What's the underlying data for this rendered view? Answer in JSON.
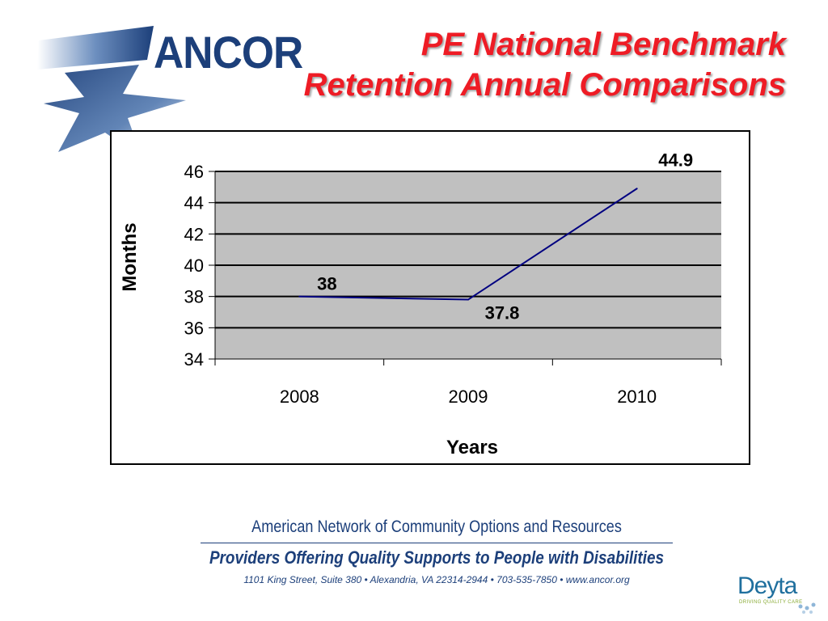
{
  "logo": {
    "text": "ANCOR"
  },
  "title": {
    "line1": "PE National Benchmark",
    "line2": "Retention Annual Comparisons"
  },
  "chart_data": {
    "type": "line",
    "categories": [
      "2008",
      "2009",
      "2010"
    ],
    "series": [
      {
        "values": [
          38,
          37.8,
          44.9
        ]
      }
    ],
    "data_labels": [
      "38",
      "37.8",
      "44.9"
    ],
    "xlabel": "Years",
    "ylabel": "Months",
    "ylim": [
      34,
      46
    ],
    "yticks": [
      "34",
      "36",
      "38",
      "40",
      "42",
      "44",
      "46"
    ],
    "grid": true,
    "plot_background": "#c0c0c0",
    "line_color": "#000080"
  },
  "footer": {
    "org_name": "American Network of Community Options and Resources",
    "tagline": "Providers Offering Quality Supports to People with Disabilities",
    "address": "1101 King Street, Suite 380 • Alexandria, VA 22314-2944 • 703-535-7850 • www.ancor.org"
  },
  "sponsor": {
    "name": "Deyta",
    "tagline": "DRIVING QUALITY CARE"
  },
  "colors": {
    "brand_blue": "#1c3f7a",
    "title_red": "#ee1c25"
  }
}
